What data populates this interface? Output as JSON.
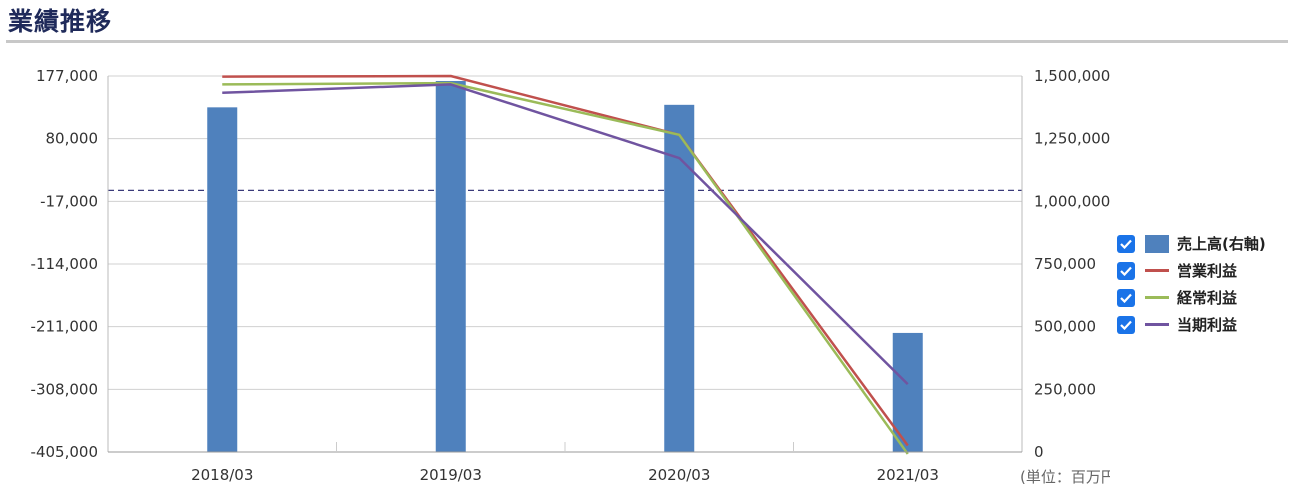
{
  "page": {
    "title": "業績推移"
  },
  "colors": {
    "bar": "#4f81bd",
    "operating": "#c0504d",
    "ordinary": "#9bbb59",
    "net": "#7054a0",
    "zero_line": "#3b3b7a",
    "grid": "#d0d0d0",
    "checkbox": "#1a73e8"
  },
  "legend": {
    "items": [
      {
        "label": "売上高(右軸)",
        "icon": "bar-swatch",
        "checked": true
      },
      {
        "label": "営業利益",
        "icon": "line-swatch",
        "checked": true
      },
      {
        "label": "経常利益",
        "icon": "line-swatch",
        "checked": true
      },
      {
        "label": "当期利益",
        "icon": "line-swatch",
        "checked": true
      }
    ]
  },
  "chart_data": {
    "type": "bar+line",
    "categories": [
      "2018/03",
      "2019/03",
      "2020/03",
      "2021/03"
    ],
    "y_left": {
      "ticks": [
        "177,000",
        "80,000",
        "-17,000",
        "-114,000",
        "-211,000",
        "-308,000",
        "-405,000"
      ],
      "range": [
        -405000,
        177000
      ]
    },
    "y_right": {
      "ticks": [
        "1,500,000",
        "1,250,000",
        "1,000,000",
        "750,000",
        "500,000",
        "250,000",
        "0"
      ],
      "range": [
        0,
        1500000
      ]
    },
    "unit_label": "(単位：百万円)",
    "series": [
      {
        "name": "売上高(右軸)",
        "type": "bar",
        "axis": "right",
        "values": [
          1375000,
          1480000,
          1385000,
          475000
        ]
      },
      {
        "name": "営業利益",
        "type": "line",
        "axis": "left",
        "values": [
          176000,
          177000,
          86000,
          -395000
        ]
      },
      {
        "name": "経常利益",
        "type": "line",
        "axis": "left",
        "values": [
          164000,
          166000,
          86000,
          -408000
        ]
      },
      {
        "name": "当期利益",
        "type": "line",
        "axis": "left",
        "values": [
          151000,
          164000,
          50000,
          -300000
        ]
      }
    ],
    "zero_line": 0,
    "grid": true,
    "legend_position": "right"
  }
}
